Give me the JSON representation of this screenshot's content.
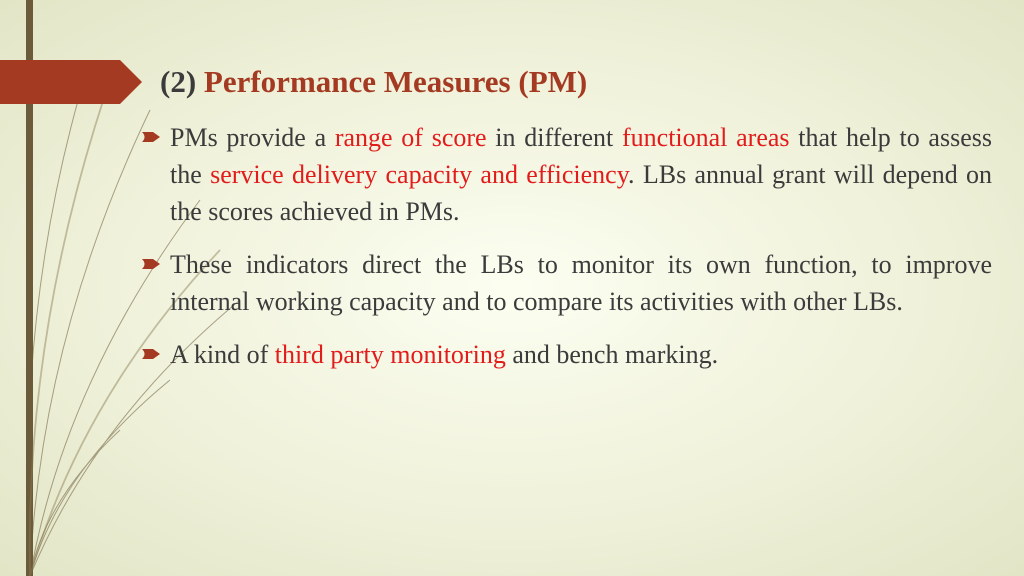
{
  "colors": {
    "background_center": "#fcfef1",
    "background_edge": "#e2e5c6",
    "left_bar": "#6b5b3a",
    "title_marker": "#a53a22",
    "title_number": "#3b3b3b",
    "title_text": "#a53a22",
    "body_text": "#3b3b3b",
    "highlight": "#e21b1b",
    "bullet_fill": "#a53a22",
    "grass_stroke": "#6b5b3a"
  },
  "typography": {
    "font_family": "Times New Roman",
    "title_fontsize": 31,
    "body_fontsize": 26,
    "title_weight": "bold"
  },
  "title": {
    "number": "(2) ",
    "main": "Performance Measures (PM)"
  },
  "bullets": [
    {
      "segments": [
        {
          "t": "PMs provide a ",
          "hl": false
        },
        {
          "t": "range of score",
          "hl": true
        },
        {
          "t": " in different ",
          "hl": false
        },
        {
          "t": "functional areas",
          "hl": true
        },
        {
          "t": " that help to assess the ",
          "hl": false
        },
        {
          "t": "service delivery capacity and efficiency",
          "hl": true
        },
        {
          "t": ". LBs annual grant will depend on the scores achieved in PMs.",
          "hl": false
        }
      ]
    },
    {
      "segments": [
        {
          "t": "These indicators direct the LBs to monitor its own function, to improve internal working capacity and to compare its activities with other LBs.",
          "hl": false
        }
      ]
    },
    {
      "segments": [
        {
          "t": "A kind of ",
          "hl": false
        },
        {
          "t": "third party monitoring",
          "hl": true
        },
        {
          "t": " and bench marking.",
          "hl": false
        }
      ]
    }
  ]
}
